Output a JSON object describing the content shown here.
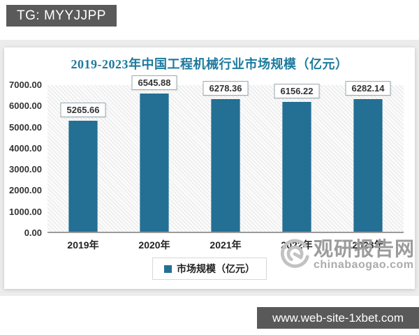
{
  "overlay": {
    "badge_text": "TG: MYYJJPP",
    "url_text": "www.web-site-1xbet.com",
    "badge_color": "#5a5a5a"
  },
  "chart_data": {
    "type": "bar",
    "title": "2019-2023年中国工程机械行业市场规模（亿元）",
    "title_color": "#1c7a9e",
    "categories": [
      "2019年",
      "2020年",
      "2021年",
      "2022年",
      "2023年"
    ],
    "values": [
      5265.66,
      6545.88,
      6278.36,
      6156.22,
      6282.14
    ],
    "data_labels": [
      "5265.66",
      "6545.88",
      "6278.36",
      "6156.22",
      "6282.14"
    ],
    "legend": "市场规模（亿元）",
    "legend_position": "bottom",
    "ylim": [
      0,
      7000
    ],
    "y_tick_labels": [
      "0.00",
      "1000.00",
      "2000.00",
      "3000.00",
      "4000.00",
      "5000.00",
      "6000.00",
      "7000.00"
    ],
    "grid": false,
    "bar_color": "#246f94"
  },
  "watermark": {
    "name": "观研报告网",
    "domain": "chinabaogao.com"
  }
}
